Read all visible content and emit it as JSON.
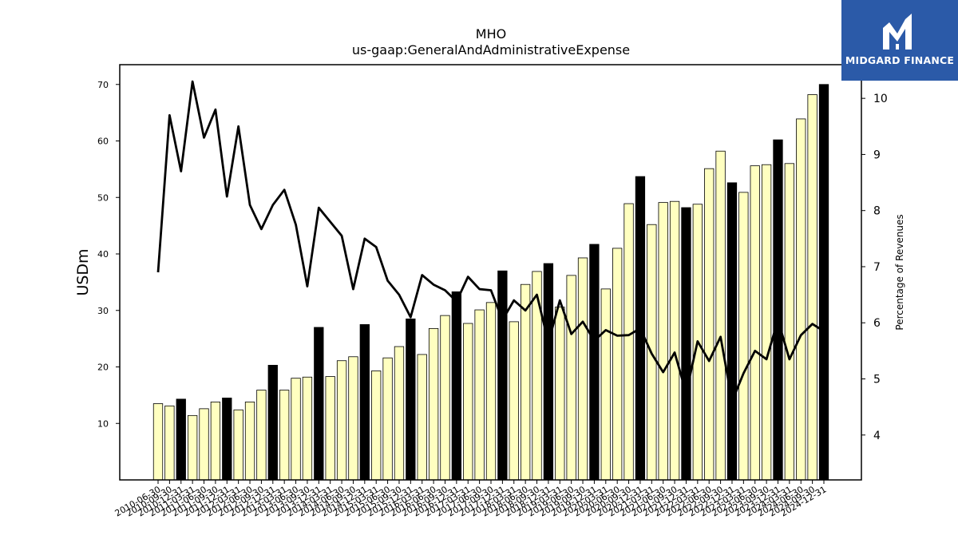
{
  "brand": {
    "name": "MIDGARD FINANCE",
    "bg_color": "#2b5aa8"
  },
  "chart_data": {
    "type": "bar",
    "title": "MHO",
    "subtitle": "us-gaap:GeneralAndAdministrativeExpense",
    "ylabel": "USDm",
    "y2label": "Percentage of Revenues",
    "ylim": [
      0,
      73.5
    ],
    "y2lim": [
      3.2,
      10.6
    ],
    "yticks": [
      10,
      20,
      30,
      40,
      50,
      60,
      70
    ],
    "y2ticks": [
      4,
      5,
      6,
      7,
      8,
      9,
      10
    ],
    "grid": false,
    "colors": {
      "quarter": "#ffffc0",
      "annual": "#000000",
      "edge": "#000000",
      "line": "#000000"
    },
    "categories": [
      "2010-06-30",
      "2010-09-30",
      "2010-12-31",
      "2011-03-31",
      "2011-06-30",
      "2011-09-30",
      "2011-12-31",
      "2012-03-31",
      "2012-06-30",
      "2012-09-30",
      "2012-12-31",
      "2013-03-31",
      "2013-06-30",
      "2013-09-30",
      "2013-12-31",
      "2014-03-31",
      "2014-06-30",
      "2014-09-30",
      "2014-12-31",
      "2015-03-31",
      "2015-06-30",
      "2015-09-30",
      "2015-12-31",
      "2016-03-31",
      "2016-06-30",
      "2016-09-30",
      "2016-12-31",
      "2017-03-31",
      "2017-06-30",
      "2017-09-30",
      "2017-12-31",
      "2018-03-31",
      "2018-06-30",
      "2018-09-30",
      "2018-12-31",
      "2019-03-31",
      "2019-06-30",
      "2019-09-30",
      "2019-12-31",
      "2020-03-31",
      "2020-06-30",
      "2020-09-30",
      "2020-12-31",
      "2021-03-31",
      "2021-06-30",
      "2021-09-30",
      "2021-12-31",
      "2022-03-31",
      "2022-06-30",
      "2022-09-30",
      "2022-12-31",
      "2023-03-31",
      "2023-06-30",
      "2023-09-30",
      "2023-12-31",
      "2024-03-31",
      "2024-06-30",
      "2024-09-30",
      "2024-12-31"
    ],
    "series": [
      {
        "values": [
          13.5,
          13.1,
          14.3,
          11.4,
          12.6,
          13.8,
          14.5,
          12.4,
          13.8,
          15.9,
          20.3,
          15.9,
          18.0,
          18.2,
          27.0,
          18.3,
          21.1,
          21.8,
          27.5,
          19.3,
          21.6,
          23.6,
          28.5,
          22.2,
          26.8,
          29.1,
          33.3,
          27.7,
          30.1,
          31.4,
          37.0,
          28.0,
          34.6,
          36.9,
          38.3,
          30.6,
          36.2,
          39.3,
          41.7,
          33.8,
          41.0,
          48.9,
          53.7,
          45.2,
          49.1,
          49.3,
          48.2,
          48.8,
          55.1,
          58.2,
          52.6,
          50.9,
          55.6,
          55.8,
          60.2,
          56.0,
          63.9,
          68.2,
          70.0
        ]
      },
      {
        "values": [
          6.9,
          9.7,
          8.7,
          10.3,
          9.3,
          9.8,
          8.25,
          9.5,
          8.1,
          7.67,
          8.1,
          8.37,
          7.75,
          6.65,
          8.05,
          7.8,
          7.55,
          6.6,
          7.5,
          7.35,
          6.75,
          6.5,
          6.1,
          6.85,
          6.68,
          6.58,
          6.38,
          6.82,
          6.6,
          6.58,
          6.05,
          6.4,
          6.22,
          6.5,
          5.65,
          6.4,
          5.8,
          6.02,
          5.68,
          5.87,
          5.77,
          5.78,
          5.9,
          5.45,
          5.12,
          5.47,
          4.75,
          5.67,
          5.32,
          5.75,
          4.6,
          5.1,
          5.5,
          5.35,
          6.05,
          5.35,
          5.78,
          5.98,
          5.85
        ]
      }
    ]
  }
}
